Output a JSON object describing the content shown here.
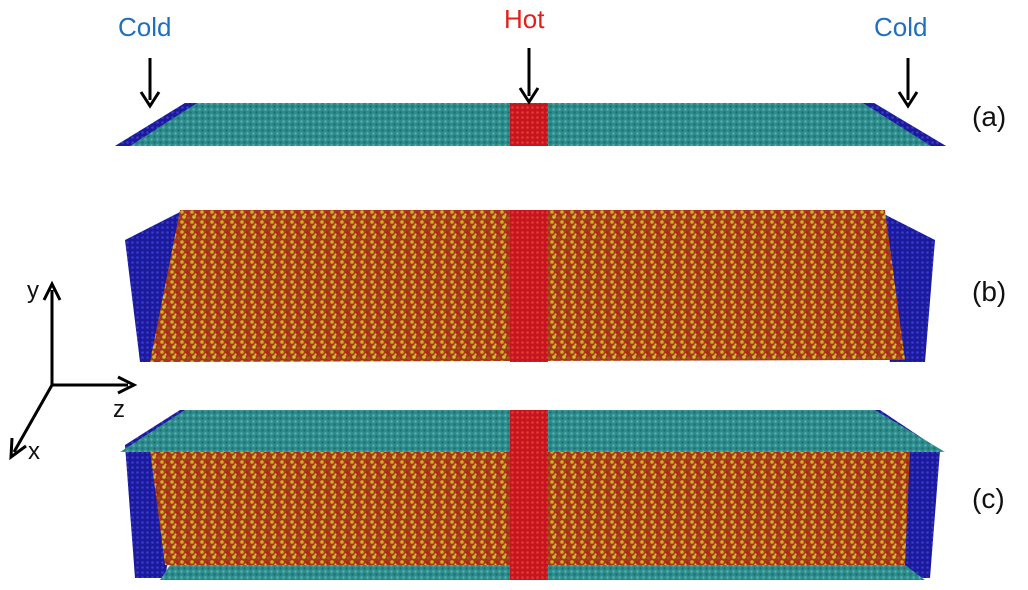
{
  "labels": {
    "cold_left": "Cold",
    "hot": "Hot",
    "cold_right": "Cold"
  },
  "panels": {
    "a": "(a)",
    "b": "(b)",
    "c": "(c)"
  },
  "axes": {
    "x": "x",
    "y": "y",
    "z": "z"
  },
  "colors": {
    "cold_label": "#1f6fbf",
    "hot_label": "#e0201a",
    "cold_region": "#1a1a9a",
    "hot_region": "#c4161c",
    "graphene": "#2e8c8c",
    "liquid_red": "#b3301a",
    "liquid_yellow": "#c9b21a",
    "arrow": "#000000"
  }
}
